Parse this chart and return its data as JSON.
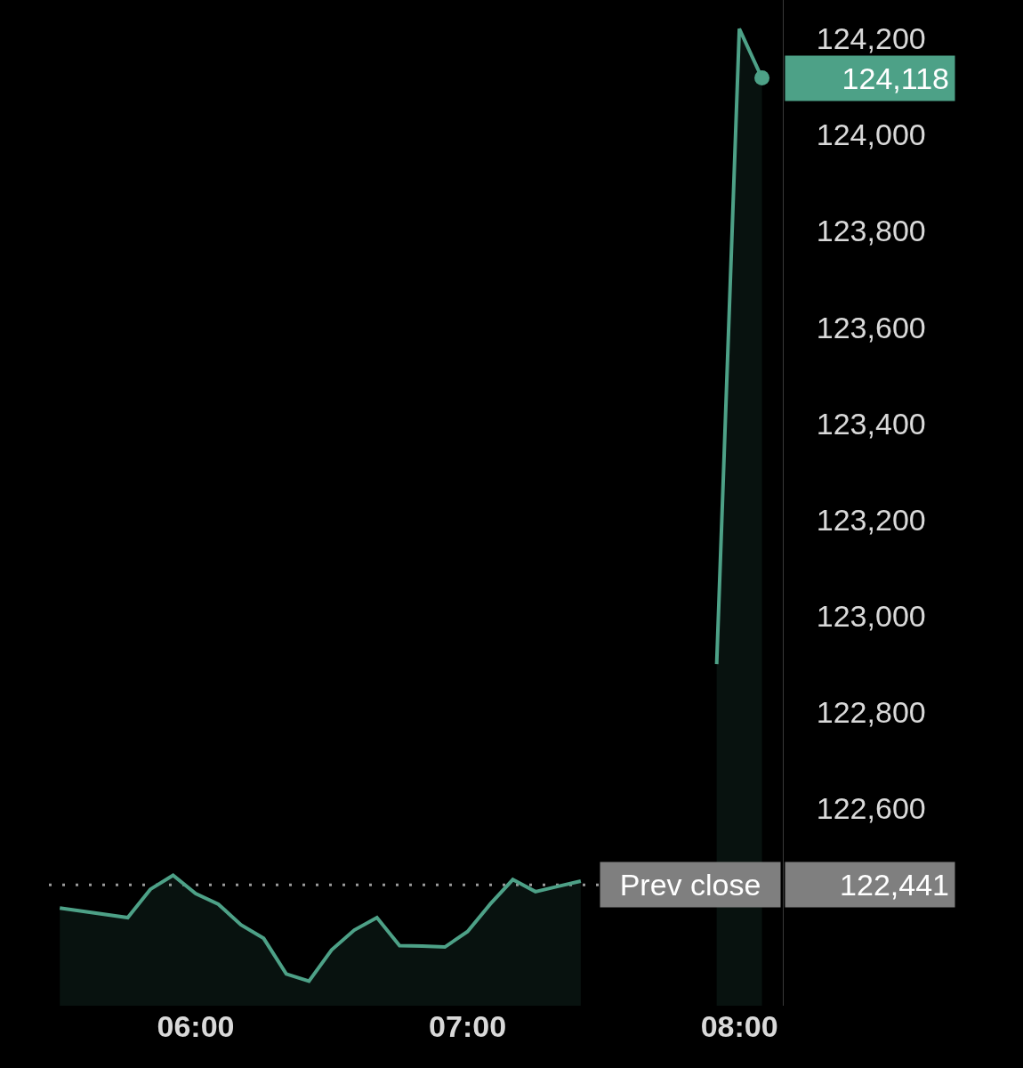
{
  "chart_data": {
    "type": "area",
    "x": [
      5.5,
      5.75,
      5.8333,
      5.9167,
      6,
      6.0833,
      6.1667,
      6.25,
      6.3333,
      6.4167,
      6.5,
      6.5833,
      6.6667,
      6.75,
      6.8333,
      6.9167,
      7,
      7.0833,
      7.1667,
      7.25,
      7.3333,
      7.4167,
      7.5,
      7.5833,
      7.6667,
      7.75,
      7.8333,
      7.9167,
      8,
      8.0833
    ],
    "series": [
      {
        "color": "#4da187",
        "values": [
          122393,
          122373,
          122432,
          122461,
          122423,
          122401,
          122358,
          122330,
          122256,
          122241,
          122306,
          122347,
          122373,
          122315,
          122314,
          122312,
          122344,
          122401,
          122452,
          122427,
          122438,
          122449,
          null,
          null,
          null,
          null,
          null,
          122900,
          124220,
          124118
        ]
      }
    ],
    "xlim": [
      5.46,
      8.16
    ],
    "xticks": [
      {
        "value": 6,
        "label": "06:00"
      },
      {
        "value": 7,
        "label": "07:00"
      },
      {
        "value": 8,
        "label": "08:00"
      }
    ],
    "ylim": [
      122190,
      124280
    ],
    "yticks": [
      {
        "value": 122600,
        "label": "122,600"
      },
      {
        "value": 122800,
        "label": "122,800"
      },
      {
        "value": 123000,
        "label": "123,000"
      },
      {
        "value": 123200,
        "label": "123,200"
      },
      {
        "value": 123400,
        "label": "123,400"
      },
      {
        "value": 123600,
        "label": "123,600"
      },
      {
        "value": 123800,
        "label": "123,800"
      },
      {
        "value": 124000,
        "label": "124,000"
      },
      {
        "value": 124200,
        "label": "124,200"
      }
    ],
    "ref_lines": [
      {
        "axis": "y",
        "value": 122441,
        "label": "Prev close",
        "color": "#9a9a9a",
        "line_style": "dotted"
      }
    ],
    "annotations": [
      {
        "text": "124,118",
        "x": 8.0833,
        "y": 124118
      },
      "122,441"
    ]
  }
}
